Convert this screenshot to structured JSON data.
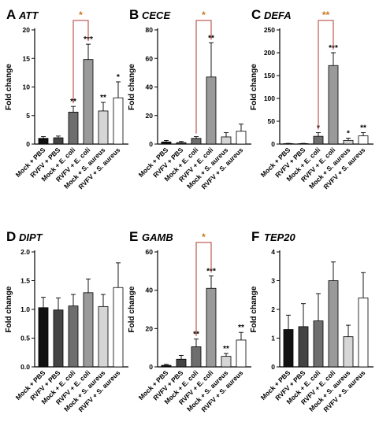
{
  "categories": [
    "Mock + PBS",
    "RVFV + PBS",
    "Mock + E. coli",
    "RVFV + E. coli",
    "Mock + S. aureus",
    "RVFV + S. aureus"
  ],
  "colors": {
    "bars": [
      "#111111",
      "#444444",
      "#6e6e6e",
      "#9a9a9a",
      "#d6d6d6",
      "#ffffff"
    ],
    "bar_edge": "#000000",
    "bracket": "#b03a2e",
    "bracket_text": "#c8751c"
  },
  "chart_data": [
    {
      "letter": "A",
      "title": "ATT",
      "type": "bar",
      "ylabel": "Fold change",
      "ylim": [
        0,
        20
      ],
      "yticks": [
        0,
        5,
        10,
        15,
        20
      ],
      "values": [
        1.0,
        1.1,
        5.6,
        14.8,
        5.8,
        8.1
      ],
      "errors": [
        0.3,
        0.3,
        1.0,
        2.7,
        1.5,
        2.8
      ],
      "sig": [
        "",
        "",
        "**",
        "***",
        "**",
        "*"
      ],
      "bracket": {
        "from": 2,
        "to": 3,
        "label": "*"
      }
    },
    {
      "letter": "B",
      "title": "CECE",
      "type": "bar",
      "ylabel": "Fold change",
      "ylim": [
        0,
        80
      ],
      "yticks": [
        0,
        20,
        40,
        60,
        80
      ],
      "values": [
        1.5,
        1.0,
        4.0,
        47.0,
        5.0,
        9.0
      ],
      "errors": [
        1.0,
        0.8,
        1.2,
        24.0,
        3.0,
        5.0
      ],
      "sig": [
        "",
        "",
        "",
        "**",
        "",
        ""
      ],
      "bracket": {
        "from": 2,
        "to": 3,
        "label": "*"
      }
    },
    {
      "letter": "C",
      "title": "DEFA",
      "type": "bar",
      "ylabel": "Fold change",
      "ylim": [
        0,
        250
      ],
      "yticks": [
        0,
        50,
        100,
        150,
        200,
        250
      ],
      "values": [
        1.0,
        1.0,
        17.0,
        172.0,
        8.0,
        18.0
      ],
      "errors": [
        0.5,
        0.5,
        8.0,
        28.0,
        5.0,
        7.0
      ],
      "sig": [
        "",
        "",
        "*",
        "***",
        "*",
        "**"
      ],
      "bracket": {
        "from": 2,
        "to": 3,
        "label": "**"
      }
    },
    {
      "letter": "D",
      "title": "DIPT",
      "type": "bar",
      "ylabel": "Fold change",
      "ylim": [
        0,
        2.0
      ],
      "yticks": [
        0.0,
        0.5,
        1.0,
        1.5,
        2.0
      ],
      "values": [
        1.03,
        0.99,
        1.06,
        1.29,
        1.05,
        1.38
      ],
      "errors": [
        0.18,
        0.21,
        0.2,
        0.24,
        0.21,
        0.43
      ],
      "sig": [
        "",
        "",
        "",
        "",
        "",
        ""
      ],
      "bracket": null
    },
    {
      "letter": "E",
      "title": "GAMB",
      "type": "bar",
      "ylabel": "Fold change",
      "ylim": [
        0,
        60
      ],
      "yticks": [
        0,
        20,
        40,
        60
      ],
      "values": [
        0.8,
        4.0,
        10.5,
        41.0,
        5.5,
        14.0
      ],
      "errors": [
        0.5,
        2.0,
        4.0,
        6.5,
        1.5,
        4.0
      ],
      "sig": [
        "",
        "",
        "**",
        "***",
        "**",
        "**"
      ],
      "bracket": {
        "from": 2,
        "to": 3,
        "label": "*"
      }
    },
    {
      "letter": "F",
      "title": "TEP20",
      "type": "bar",
      "ylabel": "Fold change",
      "ylim": [
        0,
        4
      ],
      "yticks": [
        0,
        1,
        2,
        3,
        4
      ],
      "values": [
        1.3,
        1.4,
        1.6,
        3.0,
        1.05,
        2.4
      ],
      "errors": [
        0.5,
        0.8,
        0.95,
        0.65,
        0.4,
        0.88
      ],
      "sig": [
        "",
        "",
        "",
        "",
        "",
        ""
      ],
      "bracket": null
    }
  ]
}
